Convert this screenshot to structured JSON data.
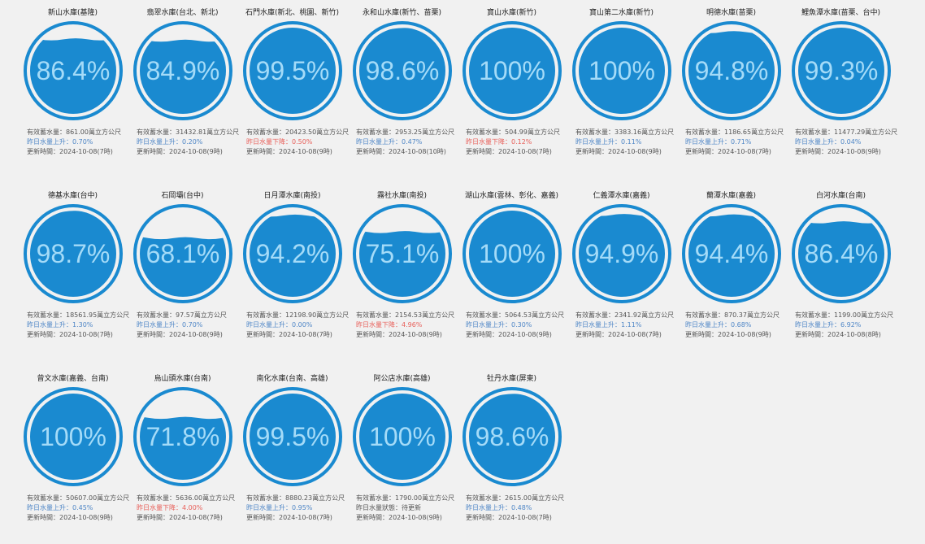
{
  "colors": {
    "ring": "#1a8ad0",
    "water": "#1a8ad0",
    "percent_text": "#a4dbf8",
    "rise": "#4f86c6",
    "fall": "#e8605a",
    "background": "#f1f1f1"
  },
  "reservoirs": [
    {
      "name": "新山水庫(基隆)",
      "percent_label": "86.4%",
      "level": 0.864,
      "capacity": "有效蓄水量：861.00萬立方公尺",
      "change": "昨日水量上升：0.70%",
      "trend": "up",
      "updated": "更新時間：2024-10-08(7時)"
    },
    {
      "name": "翡翠水庫(台北、新北)",
      "percent_label": "84.9%",
      "level": 0.849,
      "capacity": "有效蓄水量：31432.81萬立方公尺",
      "change": "昨日水量上升：0.20%",
      "trend": "up",
      "updated": "更新時間：2024-10-08(9時)"
    },
    {
      "name": "石門水庫(新北、桃園、新竹)",
      "percent_label": "99.5%",
      "level": 0.995,
      "capacity": "有效蓄水量：20423.50萬立方公尺",
      "change": "昨日水量下降：0.50%",
      "trend": "down",
      "updated": "更新時間：2024-10-08(9時)"
    },
    {
      "name": "永和山水庫(新竹、苗栗)",
      "percent_label": "98.6%",
      "level": 0.986,
      "capacity": "有效蓄水量：2953.25萬立方公尺",
      "change": "昨日水量上升：0.47%",
      "trend": "up",
      "updated": "更新時間：2024-10-08(10時)"
    },
    {
      "name": "寶山水庫(新竹)",
      "percent_label": "100%",
      "level": 1.0,
      "capacity": "有效蓄水量：504.99萬立方公尺",
      "change": "昨日水量下降：0.12%",
      "trend": "down",
      "updated": "更新時間：2024-10-08(7時)"
    },
    {
      "name": "寶山第二水庫(新竹)",
      "percent_label": "100%",
      "level": 1.0,
      "capacity": "有效蓄水量：3383.16萬立方公尺",
      "change": "昨日水量上升：0.11%",
      "trend": "up",
      "updated": "更新時間：2024-10-08(9時)"
    },
    {
      "name": "明德水庫(苗栗)",
      "percent_label": "94.8%",
      "level": 0.948,
      "capacity": "有效蓄水量：1186.65萬立方公尺",
      "change": "昨日水量上升：0.71%",
      "trend": "up",
      "updated": "更新時間：2024-10-08(7時)"
    },
    {
      "name": "鯉魚潭水庫(苗栗、台中)",
      "percent_label": "99.3%",
      "level": 0.993,
      "capacity": "有效蓄水量：11477.29萬立方公尺",
      "change": "昨日水量上升：0.04%",
      "trend": "up",
      "updated": "更新時間：2024-10-08(9時)"
    },
    {
      "name": "德基水庫(台中)",
      "percent_label": "98.7%",
      "level": 0.987,
      "capacity": "有效蓄水量：18561.95萬立方公尺",
      "change": "昨日水量上升：1.30%",
      "trend": "up",
      "updated": "更新時間：2024-10-08(7時)"
    },
    {
      "name": "石岡壩(台中)",
      "percent_label": "68.1%",
      "level": 0.681,
      "capacity": "有效蓄水量：97.57萬立方公尺",
      "change": "昨日水量上升：0.70%",
      "trend": "up",
      "updated": "更新時間：2024-10-08(9時)"
    },
    {
      "name": "日月潭水庫(南投)",
      "percent_label": "94.2%",
      "level": 0.942,
      "capacity": "有效蓄水量：12198.90萬立方公尺",
      "change": "昨日水量上升：0.00%",
      "trend": "up",
      "updated": "更新時間：2024-10-08(7時)"
    },
    {
      "name": "霧社水庫(南投)",
      "percent_label": "75.1%",
      "level": 0.751,
      "capacity": "有效蓄水量：2154.53萬立方公尺",
      "change": "昨日水量下降：4.96%",
      "trend": "down",
      "updated": "更新時間：2024-10-08(9時)"
    },
    {
      "name": "湖山水庫(雲林、彰化、嘉義)",
      "percent_label": "100%",
      "level": 1.0,
      "capacity": "有效蓄水量：5064.53萬立方公尺",
      "change": "昨日水量上升：0.30%",
      "trend": "up",
      "updated": "更新時間：2024-10-08(9時)"
    },
    {
      "name": "仁義潭水庫(嘉義)",
      "percent_label": "94.9%",
      "level": 0.949,
      "capacity": "有效蓄水量：2341.92萬立方公尺",
      "change": "昨日水量上升：1.11%",
      "trend": "up",
      "updated": "更新時間：2024-10-08(7時)"
    },
    {
      "name": "蘭潭水庫(嘉義)",
      "percent_label": "94.4%",
      "level": 0.944,
      "capacity": "有效蓄水量：870.37萬立方公尺",
      "change": "昨日水量上升：0.68%",
      "trend": "up",
      "updated": "更新時間：2024-10-08(9時)"
    },
    {
      "name": "白河水庫(台南)",
      "percent_label": "86.4%",
      "level": 0.864,
      "capacity": "有效蓄水量：1199.00萬立方公尺",
      "change": "昨日水量上升：6.92%",
      "trend": "up",
      "updated": "更新時間：2024-10-08(8時)"
    },
    {
      "name": "曾文水庫(嘉義、台南)",
      "percent_label": "100%",
      "level": 1.0,
      "capacity": "有效蓄水量：50607.00萬立方公尺",
      "change": "昨日水量上升：0.45%",
      "trend": "up",
      "updated": "更新時間：2024-10-08(9時)"
    },
    {
      "name": "烏山頭水庫(台南)",
      "percent_label": "71.8%",
      "level": 0.718,
      "capacity": "有效蓄水量：5636.00萬立方公尺",
      "change": "昨日水量下降：4.00%",
      "trend": "down",
      "updated": "更新時間：2024-10-08(7時)"
    },
    {
      "name": "南化水庫(台南、高雄)",
      "percent_label": "99.5%",
      "level": 0.995,
      "capacity": "有效蓄水量：8880.23萬立方公尺",
      "change": "昨日水量上升：0.95%",
      "trend": "up",
      "updated": "更新時間：2024-10-08(7時)"
    },
    {
      "name": "阿公店水庫(高雄)",
      "percent_label": "100%",
      "level": 1.0,
      "capacity": "有效蓄水量：1790.00萬立方公尺",
      "change": "昨日水量狀態：待更新",
      "trend": "same",
      "updated": "更新時間：2024-10-08(9時)"
    },
    {
      "name": "牡丹水庫(屏東)",
      "percent_label": "98.6%",
      "level": 0.986,
      "capacity": "有效蓄水量：2615.00萬立方公尺",
      "change": "昨日水量上升：0.48%",
      "trend": "up",
      "updated": "更新時間：2024-10-08(7時)"
    }
  ]
}
